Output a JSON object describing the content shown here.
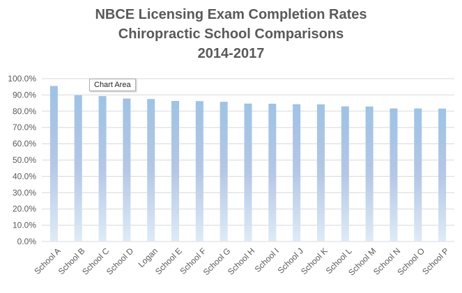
{
  "chart_data": {
    "type": "bar",
    "title": [
      "NBCE Licensing Exam Completion Rates",
      "Chiropractic School Comparisons",
      "2014-2017"
    ],
    "categories": [
      "School A",
      "School B",
      "School C",
      "School D",
      "Logan",
      "School E",
      "School F",
      "School G",
      "School H",
      "School I",
      "School J",
      "School K",
      "School L",
      "School M",
      "School N",
      "School O",
      "School P"
    ],
    "values": [
      95.5,
      89.8,
      89.3,
      87.8,
      87.5,
      86.3,
      86.2,
      85.8,
      84.7,
      84.6,
      84.3,
      84.2,
      83.0,
      82.9,
      81.7,
      81.7,
      81.6
    ],
    "yticks": [
      "0.0%",
      "10.0%",
      "20.0%",
      "30.0%",
      "40.0%",
      "50.0%",
      "60.0%",
      "70.0%",
      "80.0%",
      "90.0%",
      "100.0%"
    ],
    "ylim": [
      0,
      100
    ],
    "xlabel": "",
    "ylabel": "",
    "grid": true,
    "colors": {
      "bar_top": "#9dc3e6",
      "bar_mid": "#b4c7e7",
      "bar_bottom": "#deebf7",
      "grid": "#d9d9d9",
      "axis_text": "#595959"
    }
  },
  "tooltip": "Chart Area"
}
